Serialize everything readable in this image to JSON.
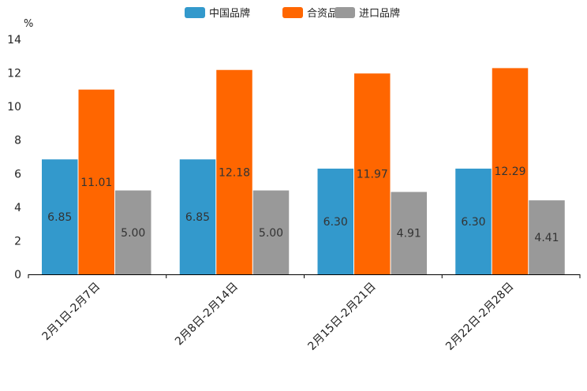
{
  "chart_data": {
    "type": "bar",
    "title": "",
    "ylabel": "%",
    "xlabel": "",
    "ylim": [
      0,
      14
    ],
    "yticks": [
      0,
      2,
      4,
      6,
      8,
      10,
      12,
      14
    ],
    "categories": [
      "2月1日-2月7日",
      "2月8日-2月14日",
      "2月15日-2月21日",
      "2月22日-2月28日"
    ],
    "series": [
      {
        "name": "中国品牌",
        "color": "#3399cc",
        "values": [
          6.85,
          6.85,
          6.3,
          6.3
        ],
        "labels": [
          "6.85",
          "6.85",
          "6.30",
          "6.30"
        ]
      },
      {
        "name": "合资品牌",
        "color": "#ff6600",
        "values": [
          11.01,
          12.18,
          11.97,
          12.29
        ],
        "labels": [
          "11.01",
          "12.18",
          "11.97",
          "12.29"
        ]
      },
      {
        "name": "进口品牌",
        "color": "#999999",
        "values": [
          5.0,
          5.0,
          4.91,
          4.41
        ],
        "labels": [
          "5.00",
          "5.00",
          "4.91",
          "4.41"
        ]
      }
    ],
    "legend_position": "top-center",
    "grid": false
  }
}
